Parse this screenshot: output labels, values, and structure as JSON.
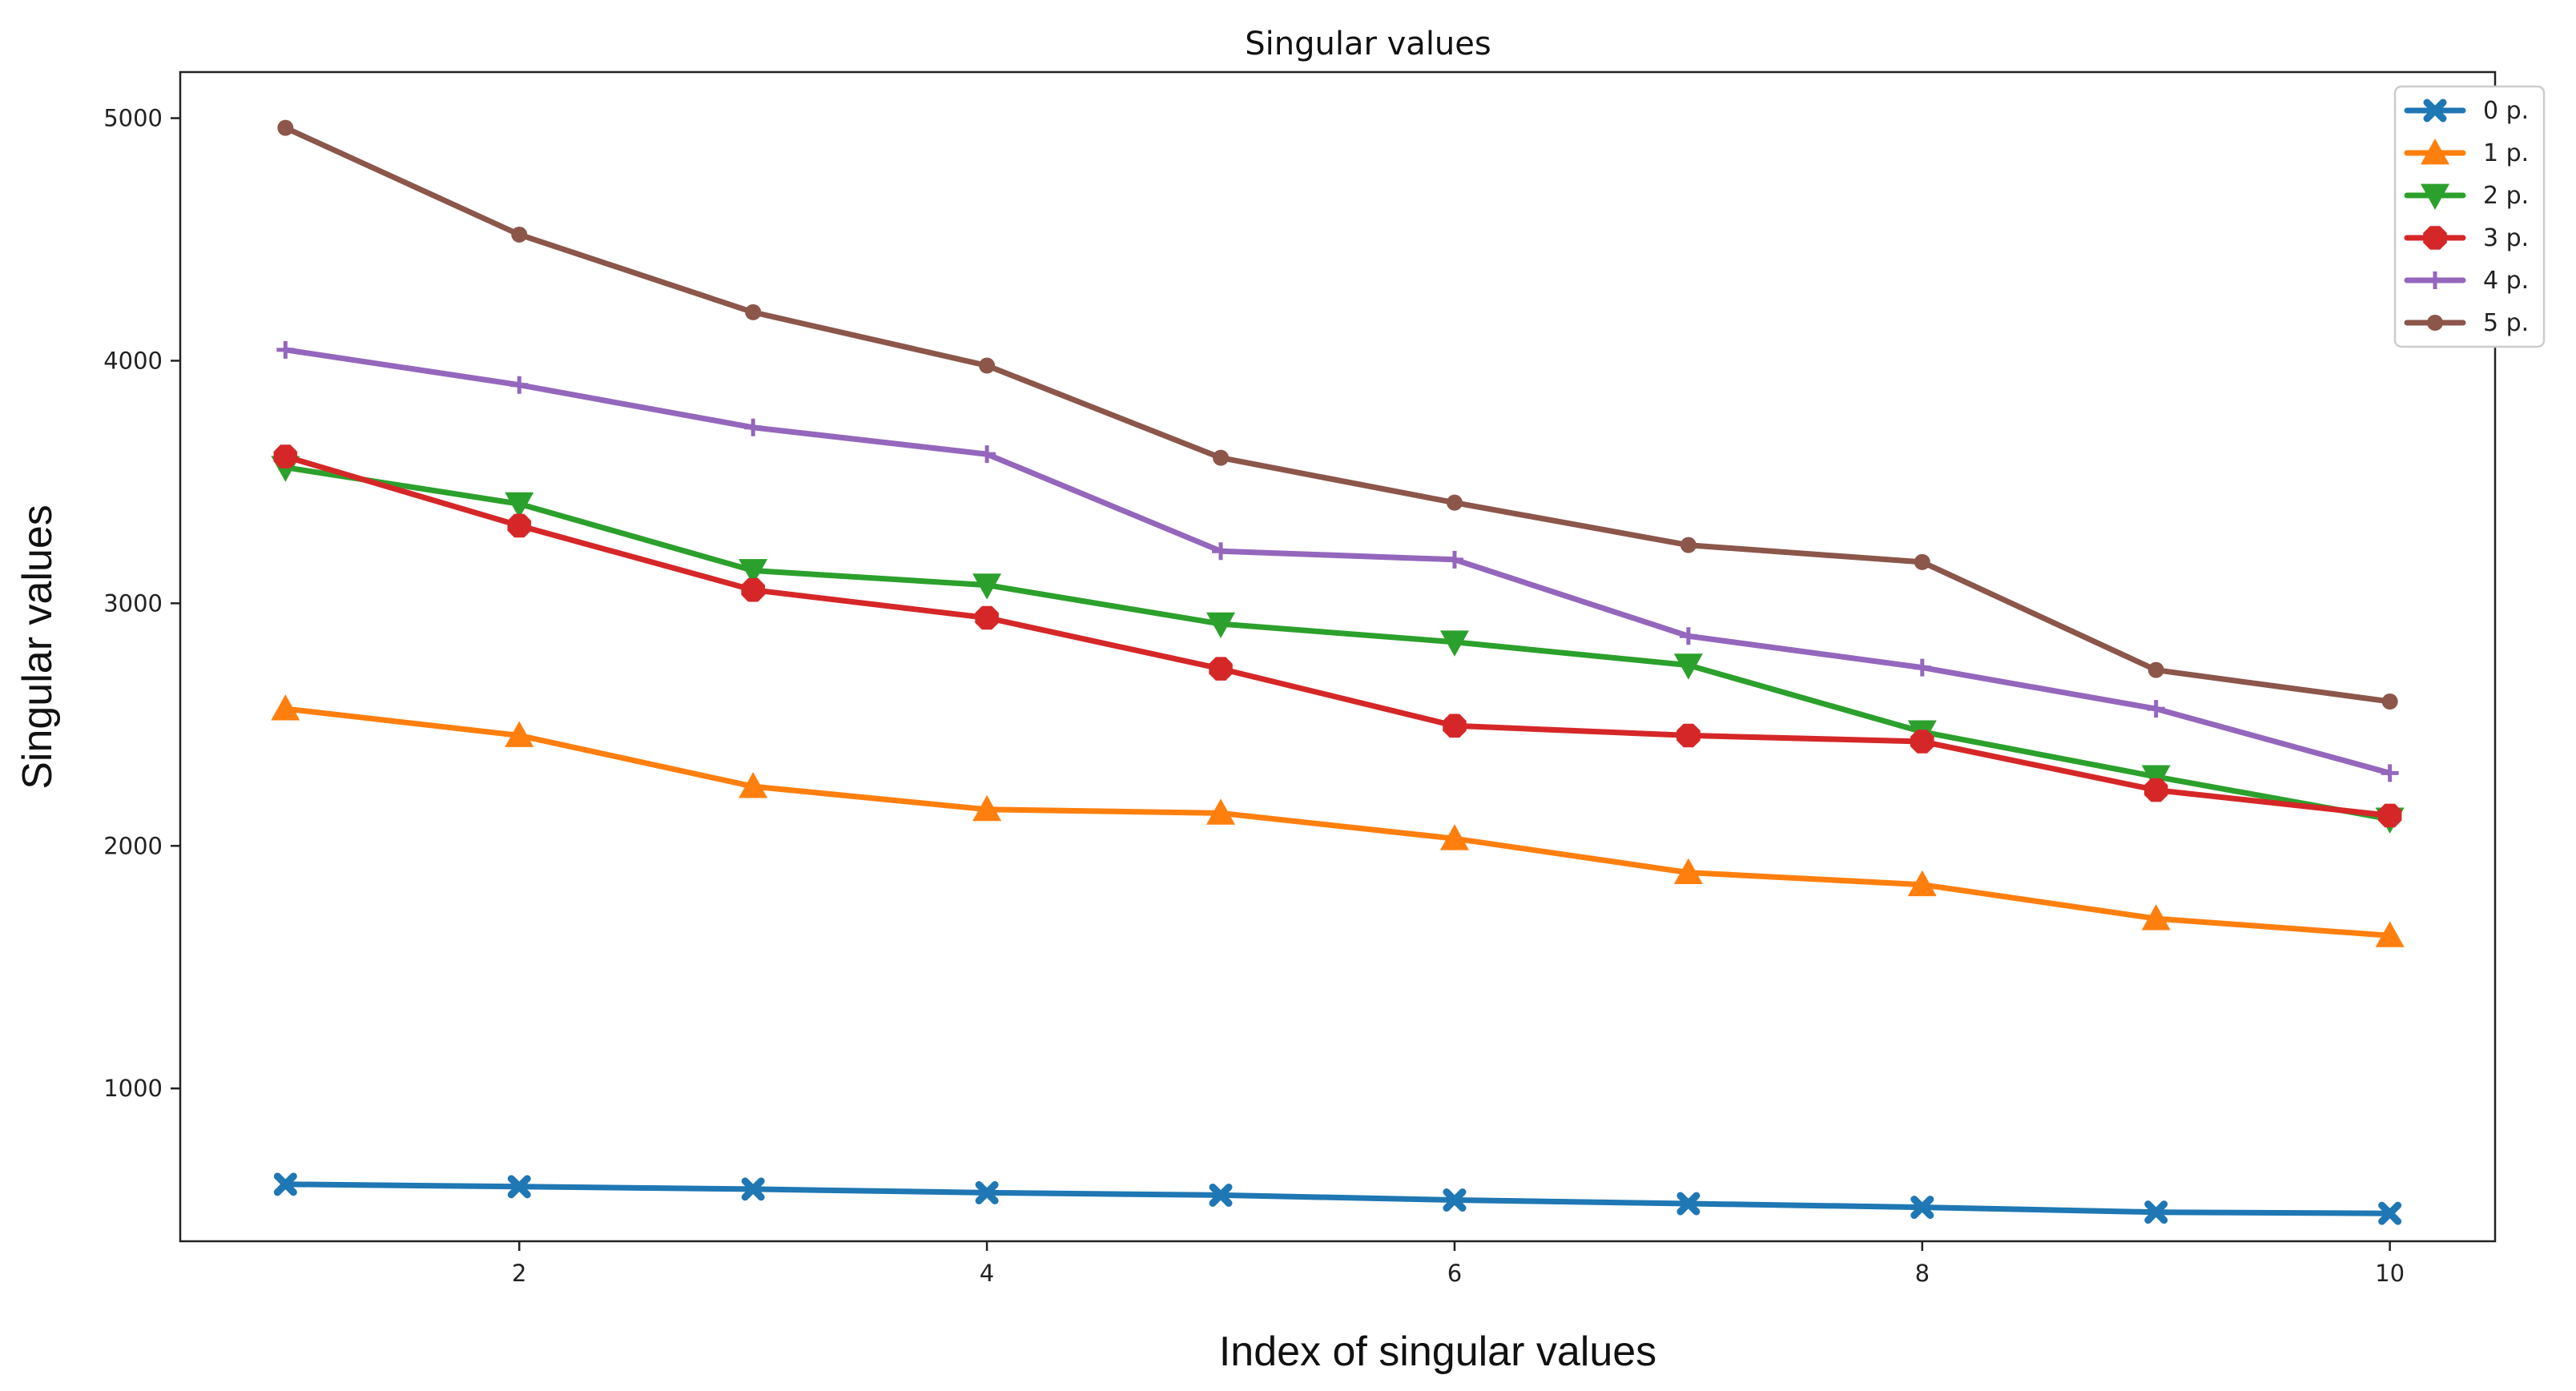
{
  "chart_data": {
    "type": "line",
    "title": "Singular values",
    "xlabel": "Index of singular values",
    "ylabel": "Singular values",
    "x": [
      1,
      2,
      3,
      4,
      5,
      6,
      7,
      8,
      9,
      10
    ],
    "xlim": [
      0.55,
      10.45
    ],
    "ylim": [
      370,
      5190
    ],
    "xticks": [
      2,
      4,
      6,
      8,
      10
    ],
    "yticks": [
      1000,
      2000,
      3000,
      4000,
      5000
    ],
    "legend_position": "top-right",
    "series": [
      {
        "name": "0 p.",
        "color": "#1f77b4",
        "marker": "x",
        "values": [
          605,
          595,
          585,
          570,
          560,
          540,
          525,
          510,
          490,
          485
        ]
      },
      {
        "name": "1 p.",
        "color": "#ff7f0e",
        "marker": "triangle-up",
        "values": [
          2565,
          2455,
          2245,
          2150,
          2135,
          2030,
          1890,
          1840,
          1700,
          1630
        ]
      },
      {
        "name": "2 p.",
        "color": "#2ca02c",
        "marker": "triangle-down",
        "values": [
          3560,
          3410,
          3135,
          3075,
          2915,
          2840,
          2745,
          2470,
          2285,
          2110
        ]
      },
      {
        "name": "3 p.",
        "color": "#d62728",
        "marker": "octagon",
        "values": [
          3605,
          3320,
          3055,
          2940,
          2730,
          2495,
          2455,
          2430,
          2230,
          2125
        ]
      },
      {
        "name": "4 p.",
        "color": "#9467bd",
        "marker": "plus",
        "values": [
          4045,
          3900,
          3725,
          3615,
          3215,
          3180,
          2865,
          2735,
          2565,
          2300
        ]
      },
      {
        "name": "5 p.",
        "color": "#8c564b",
        "marker": "circle",
        "values": [
          4960,
          4520,
          4200,
          3980,
          3600,
          3415,
          3240,
          3170,
          2725,
          2595
        ]
      }
    ]
  }
}
